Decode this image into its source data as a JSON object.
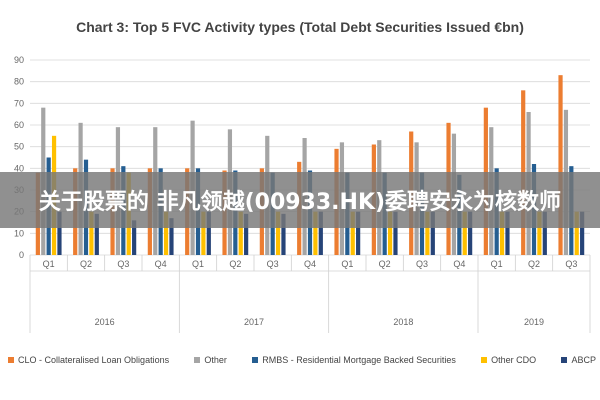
{
  "chart_data": {
    "type": "bar",
    "title": "Chart 3: Top 5 FVC Activity types (Total Debt Securities Issued €bn)",
    "categories": [
      "Q1",
      "Q2",
      "Q3",
      "Q4",
      "Q1",
      "Q2",
      "Q3",
      "Q4",
      "Q1",
      "Q2",
      "Q3",
      "Q4",
      "Q1",
      "Q2",
      "Q3"
    ],
    "years": [
      {
        "label": "2016",
        "start": 0,
        "end": 3
      },
      {
        "label": "2017",
        "start": 4,
        "end": 7
      },
      {
        "label": "2018",
        "start": 8,
        "end": 11
      },
      {
        "label": "2019",
        "start": 12,
        "end": 14
      }
    ],
    "ylim": [
      0,
      90
    ],
    "yticks": [
      0,
      10,
      20,
      30,
      40,
      50,
      60,
      70,
      80,
      90
    ],
    "series": [
      {
        "name": "CLO - Collateralised Loan Obligations",
        "color": "#ec7d31",
        "values": [
          38,
          40,
          40,
          40,
          40,
          39,
          40,
          43,
          49,
          51,
          57,
          61,
          68,
          76,
          83
        ]
      },
      {
        "name": "Other",
        "color": "#a5a5a5",
        "values": [
          68,
          61,
          59,
          59,
          62,
          58,
          55,
          54,
          52,
          53,
          52,
          56,
          59,
          66,
          67
        ]
      },
      {
        "name": "RMBS - Residential Mortgage Backed Securities",
        "color": "#255e91",
        "values": [
          45,
          44,
          41,
          40,
          40,
          39,
          38,
          39,
          38,
          38,
          38,
          37,
          40,
          42,
          41
        ]
      },
      {
        "name": "Other CDO",
        "color": "#ffc000",
        "values": [
          55,
          20,
          38,
          20,
          20,
          20,
          20,
          20,
          20,
          20,
          20,
          20,
          20,
          20,
          20
        ]
      },
      {
        "name": "ABCP",
        "color": "#264478",
        "values": [
          20,
          19,
          16,
          17,
          20,
          19,
          19,
          20,
          20,
          20,
          20,
          20,
          20,
          20,
          20
        ]
      }
    ],
    "legend_position": "bottom",
    "grid": true
  },
  "overlay": {
    "text": "关于股票的 非凡领越(00933.HK)委聘安永为核数师"
  }
}
